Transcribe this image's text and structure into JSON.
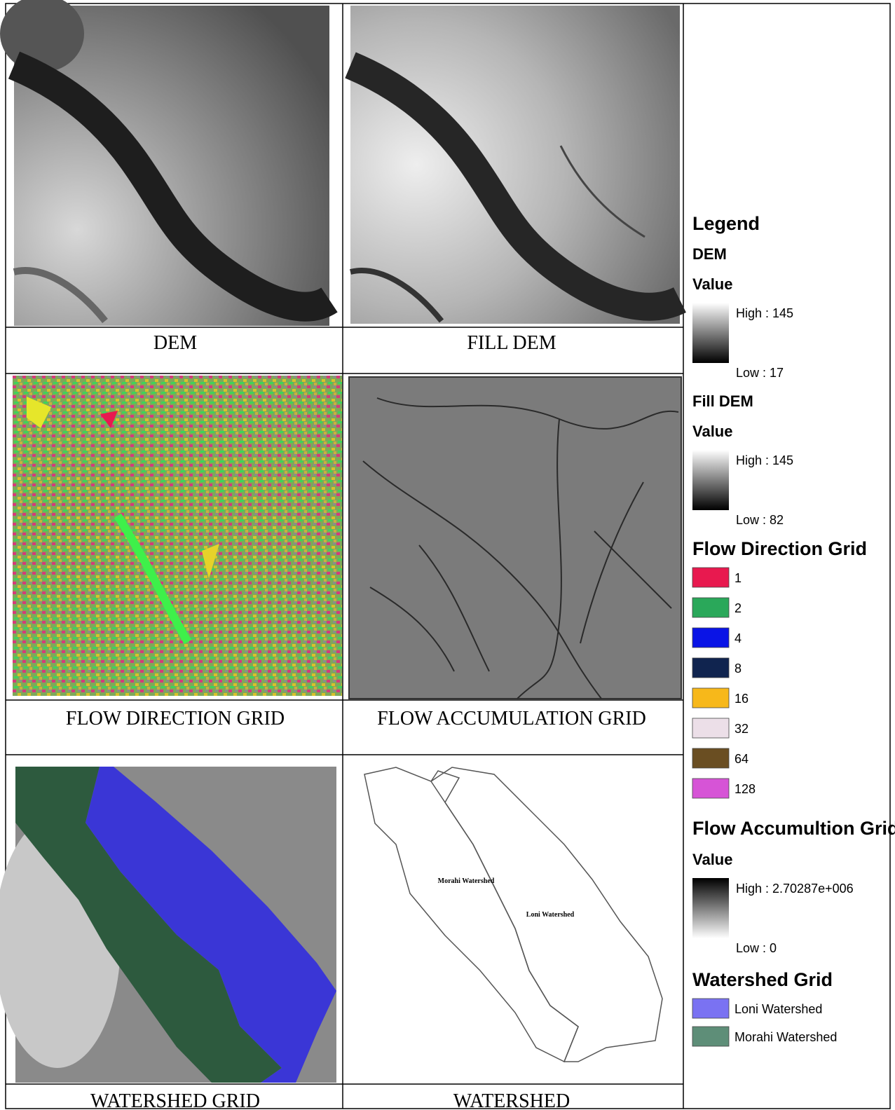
{
  "panels": [
    {
      "caption": "DEM"
    },
    {
      "caption": "FILL DEM"
    },
    {
      "caption": "FLOW DIRECTION GRID"
    },
    {
      "caption": "FLOW ACCUMULATION GRID"
    },
    {
      "caption": "WATERSHED GRID"
    },
    {
      "caption": "WATERSHED",
      "labels": [
        "Morahi Watershed",
        "Loni Watershed"
      ]
    }
  ],
  "legend": {
    "title": "Legend",
    "sections": [
      {
        "title": "DEM",
        "subtitle": "Value",
        "high": "High : 145",
        "low": "Low : 17"
      },
      {
        "title": "Fill DEM",
        "subtitle": "Value",
        "high": "High : 145",
        "low": "Low : 82"
      },
      {
        "title": "Flow Direction Grid",
        "items": [
          {
            "label": "1",
            "color": "#e8194f"
          },
          {
            "label": "2",
            "color": "#2aa85a"
          },
          {
            "label": "4",
            "color": "#0a14e6"
          },
          {
            "label": "8",
            "color": "#10244f"
          },
          {
            "label": "16",
            "color": "#f7b81a"
          },
          {
            "label": "32",
            "color": "#ecdfe8"
          },
          {
            "label": "64",
            "color": "#6a4e22"
          },
          {
            "label": "128",
            "color": "#d654d6"
          }
        ]
      },
      {
        "title": "Flow Accumultion Grid",
        "subtitle": "Value",
        "high": "High : 2.70287e+006",
        "low": "Low : 0"
      },
      {
        "title": "Watershed Grid",
        "items": [
          {
            "label": "Loni Watershed",
            "color": "#7a72f2"
          },
          {
            "label": "Morahi Watershed",
            "color": "#5e8e78"
          }
        ]
      }
    ]
  }
}
